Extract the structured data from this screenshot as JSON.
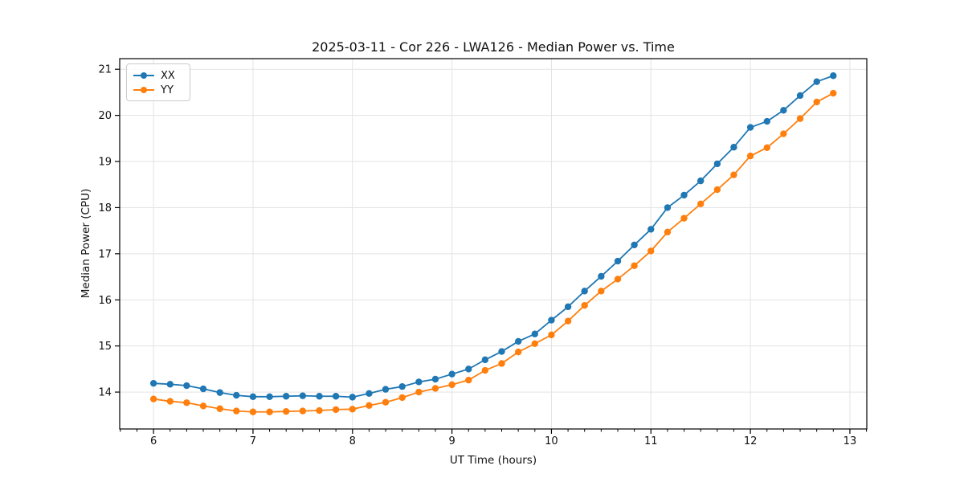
{
  "figure": {
    "background": "#ffffff",
    "text_color": "#111111",
    "grid_color": "#e3e3e3",
    "spine_color": "#000000"
  },
  "chart_data": {
    "type": "line",
    "title": "2025-03-11 - Cor 226 - LWA126 - Median Power vs. Time",
    "xlabel": "UT Time (hours)",
    "ylabel": "Median Power (CPU)",
    "xlim": [
      5.66,
      13.17
    ],
    "ylim": [
      13.2,
      21.23
    ],
    "xticks": [
      6,
      7,
      8,
      9,
      10,
      11,
      12,
      13
    ],
    "yticks": [
      14,
      15,
      16,
      17,
      18,
      19,
      20,
      21
    ],
    "grid": true,
    "legend_position": "upper-left",
    "marker": "circle",
    "x": [
      6.0,
      6.167,
      6.333,
      6.5,
      6.667,
      6.833,
      7.0,
      7.167,
      7.333,
      7.5,
      7.667,
      7.833,
      8.0,
      8.167,
      8.333,
      8.5,
      8.667,
      8.833,
      9.0,
      9.167,
      9.333,
      9.5,
      9.667,
      9.833,
      10.0,
      10.167,
      10.333,
      10.5,
      10.667,
      10.833,
      11.0,
      11.167,
      11.333,
      11.5,
      11.667,
      11.833,
      12.0,
      12.167,
      12.333,
      12.5,
      12.667,
      12.833
    ],
    "series": [
      {
        "name": "XX",
        "color": "#1f77b4",
        "values": [
          14.19,
          14.17,
          14.14,
          14.07,
          13.99,
          13.93,
          13.9,
          13.9,
          13.91,
          13.92,
          13.91,
          13.91,
          13.89,
          13.97,
          14.06,
          14.12,
          14.22,
          14.28,
          14.39,
          14.5,
          14.7,
          14.88,
          15.1,
          15.26,
          15.56,
          15.85,
          16.19,
          16.51,
          16.84,
          17.19,
          17.53,
          18.0,
          18.27,
          18.58,
          18.95,
          19.31,
          19.74,
          19.87,
          20.11,
          20.43,
          20.73,
          20.86
        ]
      },
      {
        "name": "YY",
        "color": "#ff7f0e",
        "values": [
          13.85,
          13.8,
          13.77,
          13.7,
          13.64,
          13.59,
          13.57,
          13.57,
          13.58,
          13.59,
          13.6,
          13.62,
          13.63,
          13.71,
          13.78,
          13.88,
          14.0,
          14.08,
          14.16,
          14.26,
          14.47,
          14.62,
          14.87,
          15.05,
          15.24,
          15.54,
          15.88,
          16.19,
          16.45,
          16.74,
          17.06,
          17.47,
          17.77,
          18.08,
          18.39,
          18.71,
          19.12,
          19.3,
          19.6,
          19.93,
          20.29,
          20.48
        ]
      }
    ]
  }
}
